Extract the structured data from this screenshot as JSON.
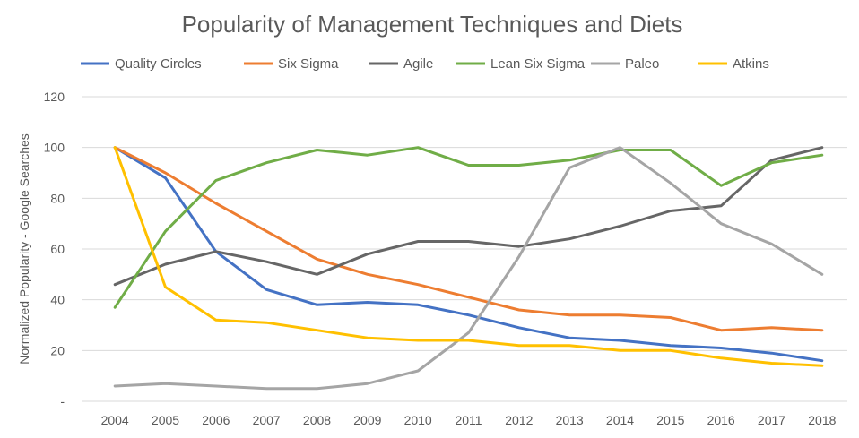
{
  "chart_data": {
    "type": "line",
    "title": "Popularity of Management Techniques and Diets",
    "xlabel": "",
    "ylabel": "Normalized Popularity - Google Searches",
    "ylim": [
      0,
      120
    ],
    "yticks": [
      "-",
      "20",
      "40",
      "60",
      "80",
      "100",
      "120"
    ],
    "grid": true,
    "legend_position": "top",
    "categories": [
      "2004",
      "2005",
      "2006",
      "2007",
      "2008",
      "2009",
      "2010",
      "2011",
      "2012",
      "2013",
      "2014",
      "2015",
      "2016",
      "2017",
      "2018"
    ],
    "series": [
      {
        "name": "Quality Circles",
        "color": "#4472c4",
        "values": [
          100,
          88,
          59,
          44,
          38,
          39,
          38,
          34,
          29,
          25,
          24,
          22,
          21,
          19,
          16
        ]
      },
      {
        "name": "Six Sigma",
        "color": "#ed7d31",
        "values": [
          100,
          90,
          78,
          67,
          56,
          50,
          46,
          41,
          36,
          34,
          34,
          33,
          28,
          29,
          28
        ]
      },
      {
        "name": "Agile",
        "color": "#666666",
        "values": [
          46,
          54,
          59,
          55,
          50,
          58,
          63,
          63,
          61,
          64,
          69,
          75,
          77,
          95,
          100
        ]
      },
      {
        "name": "Lean Six Sigma",
        "color": "#70ad47",
        "values": [
          37,
          67,
          87,
          94,
          99,
          97,
          100,
          93,
          93,
          95,
          99,
          99,
          85,
          94,
          97
        ]
      },
      {
        "name": "Paleo",
        "color": "#a5a5a5",
        "values": [
          6,
          7,
          6,
          5,
          5,
          7,
          12,
          27,
          57,
          92,
          100,
          86,
          70,
          62,
          50
        ]
      },
      {
        "name": "Atkins",
        "color": "#ffc000",
        "values": [
          100,
          45,
          32,
          31,
          28,
          25,
          24,
          24,
          22,
          22,
          20,
          20,
          17,
          15,
          14
        ]
      }
    ]
  }
}
